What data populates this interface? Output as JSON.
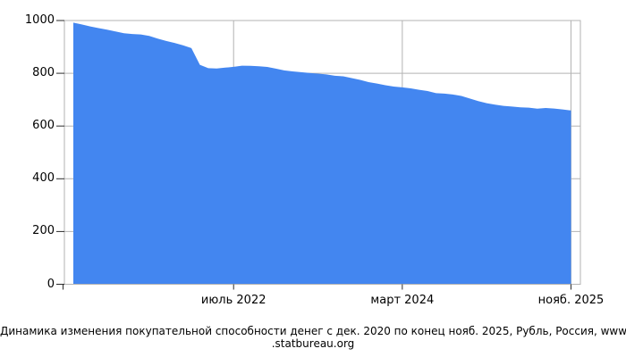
{
  "caption": {
    "lines": [
      "Динамика изменения покупательной способности денег с дек. 2020 по конец нояб. 2025, Рубль, Россия, www",
      ".statbureau.org"
    ]
  },
  "colors": {
    "area_fill": "#4386F0",
    "gridline": "#b3b3b3",
    "frame": "#b3b3b3",
    "tick": "#2a2a2a",
    "text": "#000000",
    "background": "#ffffff"
  },
  "chart_data": {
    "type": "area",
    "title": "Динамика изменения покупательной способности денег с дек. 2020 по конец нояб. 2025, Рубль, Россия, www.statbureau.org",
    "x_start_month": "дек. 2020",
    "x_end_month": "нояб. 2025",
    "xlabel": "",
    "ylabel": "",
    "ylim": [
      0,
      1000
    ],
    "y_ticks": [
      0,
      200,
      400,
      600,
      800,
      1000
    ],
    "x_ticks": [
      {
        "index": 19,
        "label": "июль 2022"
      },
      {
        "index": 39,
        "label": "март 2024"
      },
      {
        "index": 59,
        "label": "нояб. 2025"
      }
    ],
    "grid": true,
    "legend": "none",
    "values": [
      991.8,
      985.2,
      977.6,
      971.1,
      965.5,
      958.5,
      951.9,
      948.9,
      947.3,
      941.7,
      931.3,
      922.5,
      915.0,
      906.0,
      895.5,
      832.2,
      819.4,
      818.4,
      821.3,
      824.5,
      828.8,
      828.4,
      826.9,
      823.9,
      817.5,
      810.7,
      807.0,
      804.0,
      801.0,
      798.5,
      795.6,
      790.6,
      788.4,
      781.6,
      775.1,
      766.6,
      761.1,
      754.6,
      749.5,
      746.6,
      742.9,
      737.4,
      732.7,
      724.4,
      723.0,
      719.5,
      714.2,
      704.1,
      694.9,
      686.5,
      681.0,
      676.6,
      673.9,
      671.0,
      669.7,
      665.9,
      668.5,
      666.3,
      663.0,
      659.0
    ]
  }
}
